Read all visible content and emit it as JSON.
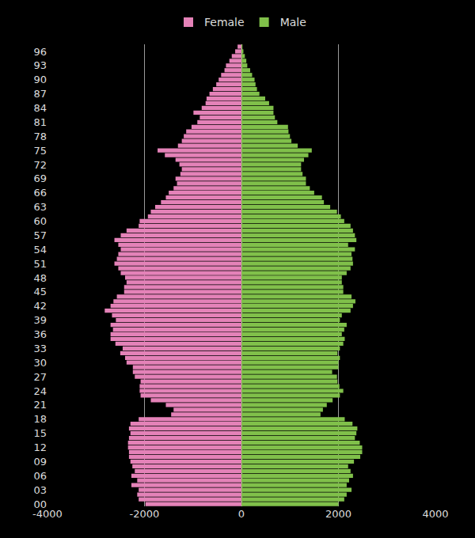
{
  "chart_data": {
    "type": "bar",
    "orientation": "horizontal",
    "categories": [
      "00",
      null,
      null,
      "03",
      null,
      null,
      "06",
      null,
      null,
      "09",
      null,
      null,
      "12",
      null,
      null,
      "15",
      null,
      null,
      "18",
      null,
      null,
      "21",
      null,
      null,
      "24",
      null,
      null,
      "27",
      null,
      null,
      "30",
      null,
      null,
      "33",
      null,
      null,
      "36",
      null,
      null,
      "39",
      null,
      null,
      "42",
      null,
      null,
      "45",
      null,
      null,
      "48",
      null,
      null,
      "51",
      null,
      null,
      "54",
      null,
      null,
      "57",
      null,
      null,
      "60",
      null,
      null,
      "63",
      null,
      null,
      "66",
      null,
      null,
      "69",
      null,
      null,
      "72",
      null,
      null,
      "75",
      null,
      null,
      "78",
      null,
      null,
      "81",
      null,
      null,
      "84",
      null,
      null,
      "87",
      null,
      null,
      "90",
      null,
      null,
      "93",
      null,
      null,
      "96",
      null
    ],
    "series": [
      {
        "name": "Female",
        "color": "#e482b8",
        "values": [
          -1980,
          -2120,
          -2150,
          -2120,
          -2270,
          -2150,
          -2270,
          -2200,
          -2250,
          -2290,
          -2320,
          -2320,
          -2340,
          -2340,
          -2320,
          -2290,
          -2320,
          -2290,
          -2120,
          -1450,
          -1400,
          -1560,
          -1870,
          -2080,
          -2100,
          -2100,
          -2080,
          -2200,
          -2240,
          -2240,
          -2370,
          -2400,
          -2500,
          -2450,
          -2600,
          -2700,
          -2700,
          -2650,
          -2700,
          -2590,
          -2670,
          -2820,
          -2700,
          -2640,
          -2570,
          -2420,
          -2420,
          -2370,
          -2400,
          -2490,
          -2540,
          -2620,
          -2570,
          -2540,
          -2490,
          -2540,
          -2620,
          -2490,
          -2370,
          -2120,
          -2100,
          -1930,
          -1870,
          -1780,
          -1660,
          -1560,
          -1500,
          -1400,
          -1330,
          -1360,
          -1260,
          -1230,
          -1280,
          -1360,
          -1580,
          -1730,
          -1310,
          -1230,
          -1190,
          -1140,
          -1030,
          -910,
          -860,
          -990,
          -820,
          -740,
          -720,
          -660,
          -590,
          -520,
          -470,
          -420,
          -350,
          -320,
          -250,
          -200,
          -130,
          -80
        ]
      },
      {
        "name": "Male",
        "color": "#80c04a",
        "values": [
          2000,
          2120,
          2170,
          2270,
          2170,
          2220,
          2300,
          2250,
          2200,
          2320,
          2450,
          2490,
          2490,
          2440,
          2340,
          2370,
          2390,
          2290,
          2130,
          1630,
          1680,
          1760,
          1880,
          2030,
          2100,
          2020,
          1980,
          1970,
          1870,
          2000,
          2000,
          2030,
          1980,
          2030,
          2100,
          2130,
          2070,
          2120,
          2170,
          2030,
          2070,
          2250,
          2300,
          2350,
          2270,
          2100,
          2100,
          2070,
          2070,
          2170,
          2250,
          2300,
          2290,
          2270,
          2340,
          2200,
          2370,
          2340,
          2300,
          2250,
          2120,
          2050,
          1970,
          1830,
          1700,
          1660,
          1500,
          1410,
          1330,
          1330,
          1260,
          1230,
          1230,
          1290,
          1380,
          1450,
          1160,
          1030,
          1000,
          970,
          960,
          740,
          690,
          660,
          660,
          570,
          490,
          370,
          320,
          290,
          270,
          220,
          180,
          120,
          100,
          70,
          40,
          20
        ]
      }
    ],
    "xlim": [
      -4000,
      4000
    ],
    "xticks": [
      -4000,
      -2000,
      0,
      2000,
      4000
    ],
    "grid": true,
    "legend": "top"
  }
}
